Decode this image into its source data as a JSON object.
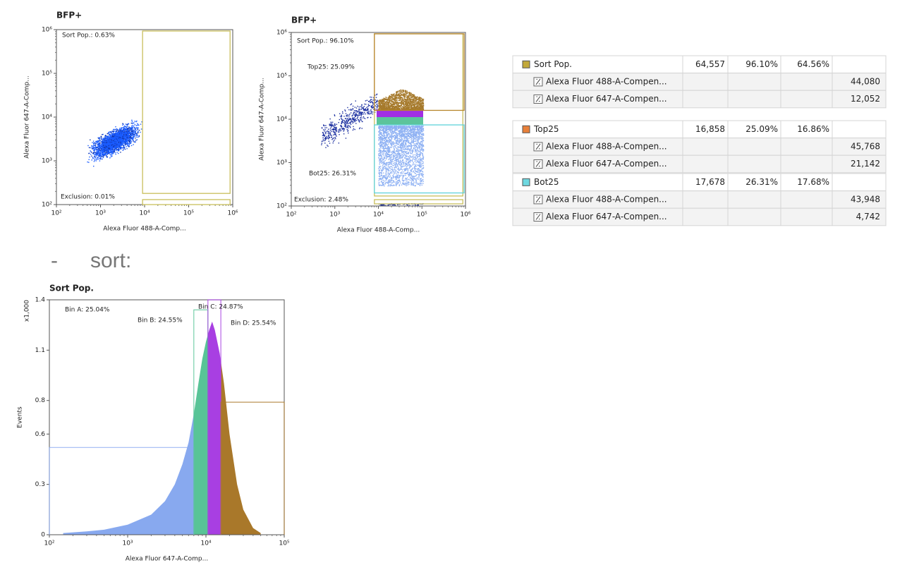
{
  "header": {
    "marker": "-",
    "text": "sort:"
  },
  "chart_data": [
    {
      "type": "scatter",
      "title": "BFP+",
      "x_label": "Alexa Fluor 488-A-Comp...",
      "y_label": "Alexa Fluor 647-A-Comp...",
      "log_scale": true,
      "xlim": [
        100,
        1000000
      ],
      "ylim": [
        100,
        1000000
      ],
      "xticks": [
        {
          "value": 100,
          "label": "10²"
        },
        {
          "value": 1000,
          "label": "10³"
        },
        {
          "value": 10000,
          "label": "10⁴"
        },
        {
          "value": 100000,
          "label": "10⁵"
        },
        {
          "value": 1000000,
          "label": "10⁶"
        }
      ],
      "yticks": [
        {
          "value": 100,
          "label": "10²"
        },
        {
          "value": 1000,
          "label": "10³"
        },
        {
          "value": 10000,
          "label": "10⁴"
        },
        {
          "value": 100000,
          "label": "10⁵"
        },
        {
          "value": 1000000,
          "label": "10⁶"
        }
      ],
      "gates": [
        {
          "label": "Sort Pop.: 0.63%",
          "color": "#c9bf5c",
          "x": [
            9000,
            870000
          ],
          "y": [
            180,
            930000
          ]
        },
        {
          "label": "Exclusion: 0.01%",
          "color": "#c9bf5c",
          "x": [
            9000,
            870000
          ],
          "y": [
            100,
            130
          ]
        }
      ]
    },
    {
      "type": "scatter",
      "title": "BFP+",
      "x_label": "Alexa Fluor 488-A-Comp...",
      "y_label": "Alexa Fluor 647-A-Comp...",
      "log_scale": true,
      "xlim": [
        100,
        1000000
      ],
      "ylim": [
        100,
        1000000
      ],
      "xticks": [
        {
          "value": 100,
          "label": "10²"
        },
        {
          "value": 1000,
          "label": "10³"
        },
        {
          "value": 10000,
          "label": "10⁴"
        },
        {
          "value": 100000,
          "label": "10⁵"
        },
        {
          "value": 1000000,
          "label": "10⁶"
        }
      ],
      "yticks": [
        {
          "value": 100,
          "label": "10²"
        },
        {
          "value": 1000,
          "label": "10³"
        },
        {
          "value": 10000,
          "label": "10⁴"
        },
        {
          "value": 100000,
          "label": "10⁵"
        },
        {
          "value": 1000000,
          "label": "10⁶"
        }
      ],
      "gates": [
        {
          "label": "Sort Pop.: 96.10%",
          "color": "#c9bf5c",
          "x": [
            8100,
            870000
          ],
          "y": [
            170,
            930000
          ]
        },
        {
          "label": "Top25: 25.09%",
          "color": "#b8862e",
          "x": [
            8100,
            930000
          ],
          "y": [
            16000,
            930000
          ]
        },
        {
          "label": "Bot25: 26.31%",
          "color": "#5fd3da",
          "x": [
            8100,
            930000
          ],
          "y": [
            200,
            7400
          ]
        },
        {
          "label": "Exclusion: 2.48%",
          "color": "#c9bf5c",
          "x": [
            8100,
            870000
          ],
          "y": [
            112,
            140
          ]
        }
      ]
    },
    {
      "type": "area",
      "title": "Sort Pop.",
      "x_label": "Alexa Fluor 647-A-Comp...",
      "y_label": "Events",
      "y_unit": "x1,000",
      "log_scale": true,
      "xlim": [
        100,
        100000
      ],
      "ylim": [
        0,
        1.4
      ],
      "xticks": [
        {
          "value": 100,
          "label": "10²"
        },
        {
          "value": 1000,
          "label": "10³"
        },
        {
          "value": 10000,
          "label": "10⁴"
        },
        {
          "value": 100000,
          "label": "10⁵"
        }
      ],
      "yticks": [
        0,
        0.3,
        0.6,
        0.8,
        1.1,
        1.4
      ],
      "x": [
        150,
        300,
        500,
        1000,
        2000,
        3000,
        4000,
        5000,
        6000,
        7000,
        8000,
        9000,
        10000,
        11000,
        12000,
        13000,
        15000,
        17000,
        20000,
        25000,
        30000,
        40000,
        50000
      ],
      "values": [
        0.01,
        0.02,
        0.03,
        0.06,
        0.12,
        0.2,
        0.3,
        0.42,
        0.55,
        0.72,
        0.9,
        1.05,
        1.15,
        1.22,
        1.27,
        1.22,
        1.08,
        0.9,
        0.6,
        0.3,
        0.15,
        0.04,
        0.01
      ],
      "gates": [
        {
          "label": "Bin A: 25.04%",
          "color": "#88a9ef",
          "x": [
            100,
            7000
          ],
          "level": 0.52
        },
        {
          "label": "Bin B: 24.55%",
          "color": "#58c497",
          "x": [
            7000,
            10600
          ],
          "level": 1.34
        },
        {
          "label": "Bin C: 24.87%",
          "color": "#a83fe2",
          "x": [
            10600,
            15500
          ],
          "level": 1.4
        },
        {
          "label": "Bin D: 25.54%",
          "color": "#a9782a",
          "x": [
            15500,
            100000
          ],
          "level": 0.79
        }
      ]
    }
  ],
  "table": {
    "groups": [
      {
        "name": "Sort Pop.",
        "color": "#c2a83a",
        "count": "64,557",
        "pct_parent": "96.10%",
        "pct_total": "64.56%",
        "stats": [
          {
            "name": "Alexa Fluor 488-A-Compen...",
            "value": "44,080"
          },
          {
            "name": "Alexa Fluor 647-A-Compen...",
            "value": "12,052"
          }
        ]
      },
      {
        "name": "Top25",
        "color": "#e8803a",
        "count": "16,858",
        "pct_parent": "25.09%",
        "pct_total": "16.86%",
        "stats": [
          {
            "name": "Alexa Fluor 488-A-Compen...",
            "value": "45,768"
          },
          {
            "name": "Alexa Fluor 647-A-Compen...",
            "value": "21,142"
          }
        ]
      },
      {
        "name": "Bot25",
        "color": "#6fd8e0",
        "count": "17,678",
        "pct_parent": "26.31%",
        "pct_total": "17.68%",
        "stats": [
          {
            "name": "Alexa Fluor 488-A-Compen...",
            "value": "43,948"
          },
          {
            "name": "Alexa Fluor 647-A-Compen...",
            "value": "4,742"
          }
        ]
      }
    ]
  }
}
